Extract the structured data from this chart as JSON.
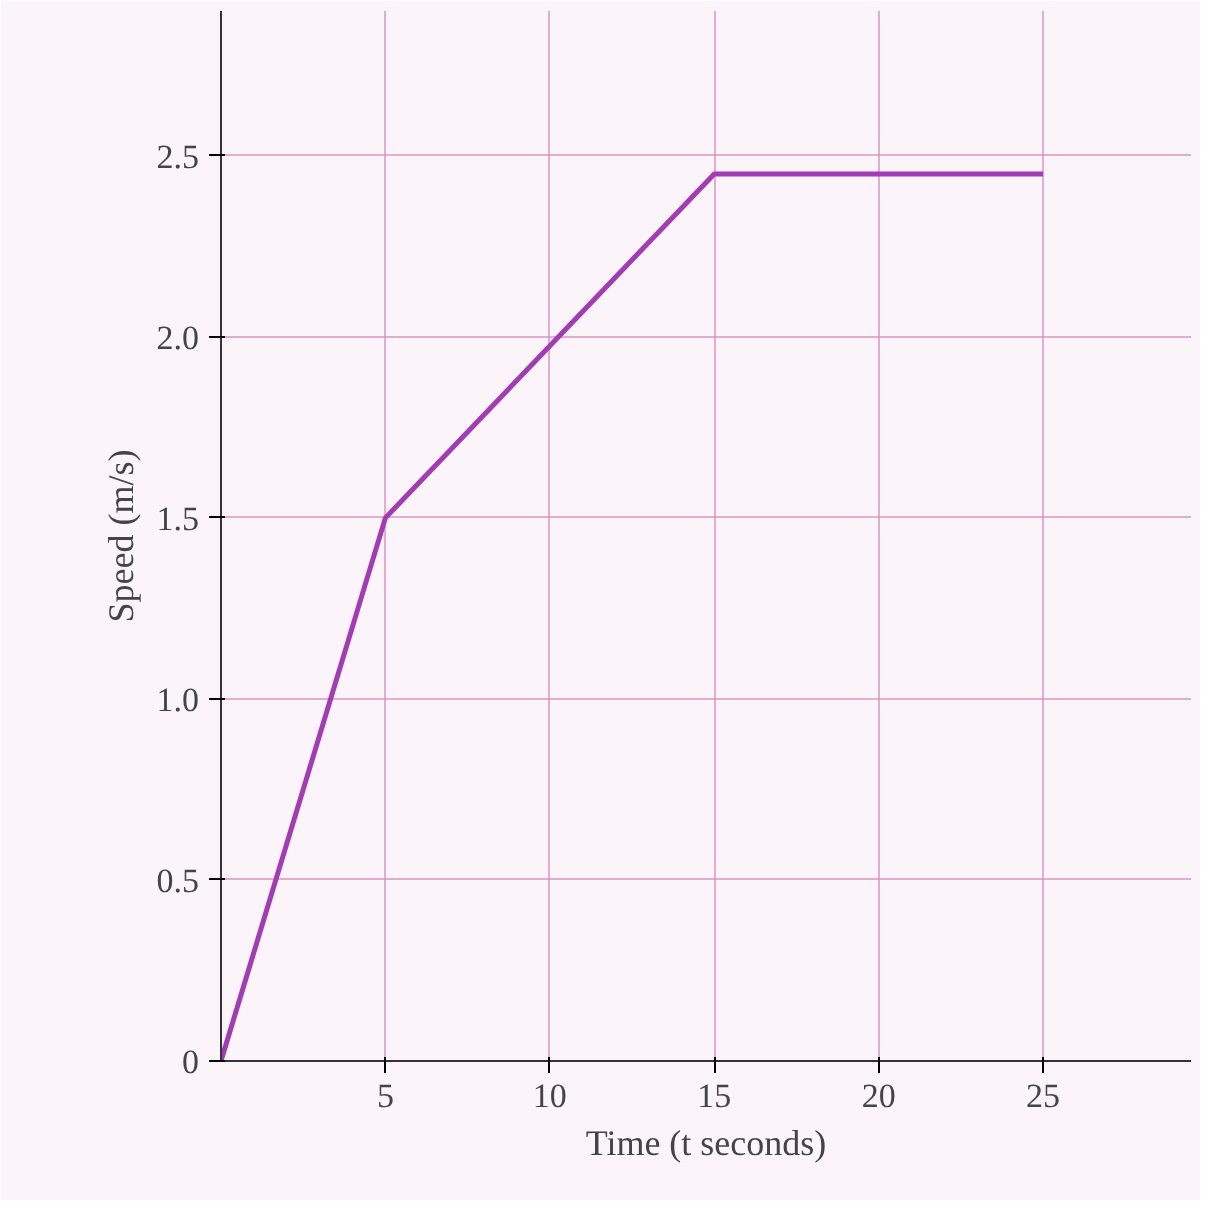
{
  "chart_data": {
    "type": "line",
    "xlabel": "Time (t seconds)",
    "ylabel": "Speed (m/s)",
    "x": [
      0,
      5,
      15,
      25
    ],
    "series": [
      {
        "color": "#a23bb5",
        "values": [
          0,
          1.5,
          2.45,
          2.45
        ]
      }
    ],
    "xlim": [
      0,
      29.5
    ],
    "ylim": [
      0,
      2.9
    ],
    "xticks": [
      5,
      10,
      15,
      20,
      25
    ],
    "yticks": [
      0,
      0.5,
      {
        "value": 1,
        "label": "1.0"
      },
      1.5,
      {
        "value": 2,
        "label": "2.0"
      },
      2.5
    ],
    "grid": true,
    "marker": "none",
    "line_style": "solid"
  }
}
